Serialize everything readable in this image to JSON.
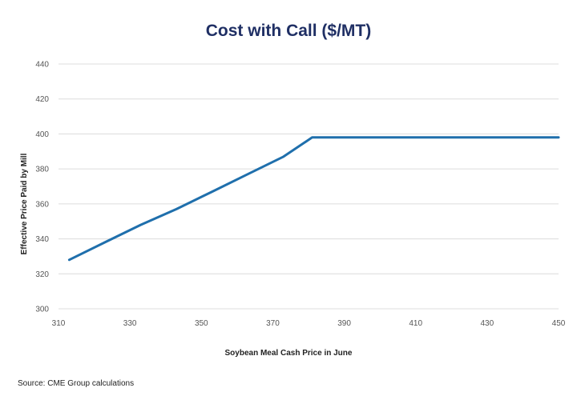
{
  "colors": {
    "title": "#1f2f64",
    "series": "#1f6fac",
    "grid": "#dcdcdc",
    "tick_text": "#555555",
    "label_text": "#222222"
  },
  "footer": {
    "source": "Source: CME Group calculations"
  },
  "chart_data": {
    "type": "line",
    "title": "Cost with Call ($/MT)",
    "xlabel": "Soybean Meal Cash Price in June",
    "ylabel": "Effective Price Paid by Mill",
    "xlim": [
      310,
      450
    ],
    "ylim": [
      300,
      440
    ],
    "x_ticks": [
      310,
      330,
      350,
      370,
      390,
      410,
      430,
      450
    ],
    "y_ticks": [
      300,
      320,
      340,
      360,
      380,
      400,
      420,
      440
    ],
    "grid": true,
    "series": [
      {
        "name": "Cost with Call",
        "x": [
          313,
          323,
          333,
          343,
          353,
          363,
          373,
          381,
          391,
          401,
          411,
          421,
          431,
          441,
          450
        ],
        "values": [
          328,
          338,
          348,
          357,
          367,
          377,
          387,
          398,
          398,
          398,
          398,
          398,
          398,
          398,
          398
        ]
      }
    ]
  }
}
